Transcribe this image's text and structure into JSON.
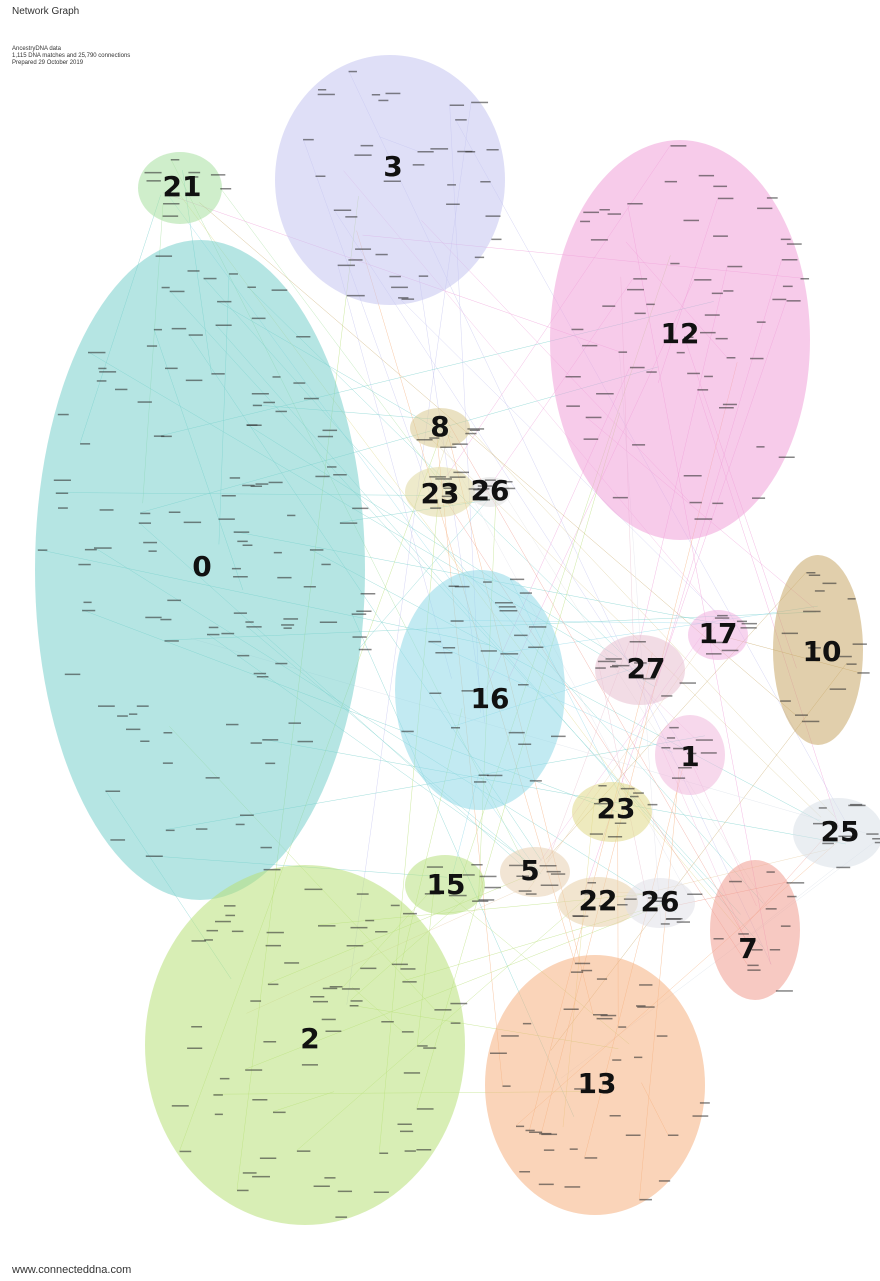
{
  "header": {
    "title": "Network Graph",
    "source": "AncestryDNA data",
    "summary": "1,115 DNA matches and 25,790 connections",
    "prepared": "Prepared 29 October 2019"
  },
  "clusters": [
    {
      "label": "21",
      "color": "#a8e0a0"
    },
    {
      "label": "3",
      "color": "#c4c4f0"
    },
    {
      "label": "12",
      "color": "#f0a0d8"
    },
    {
      "label": "8",
      "color": "#d8c890"
    },
    {
      "label": "23",
      "color": "#e0d8a0"
    },
    {
      "label": "26",
      "color": "#e0e0e0"
    },
    {
      "label": "0",
      "color": "#78d0cc"
    },
    {
      "label": "17",
      "color": "#f0b0e0"
    },
    {
      "label": "10",
      "color": "#c8a868"
    },
    {
      "label": "27",
      "color": "#e8c0d0"
    },
    {
      "label": "16",
      "color": "#90d8e8"
    },
    {
      "label": "1",
      "color": "#f0b8dc"
    },
    {
      "label": "23",
      "color": "#e0d888"
    },
    {
      "label": "25",
      "color": "#d8e0e8"
    },
    {
      "label": "5",
      "color": "#e8d0b0"
    },
    {
      "label": "15",
      "color": "#b8e080"
    },
    {
      "label": "22",
      "color": "#e8d0a8"
    },
    {
      "label": "26",
      "color": "#e0e0e8"
    },
    {
      "label": "7",
      "color": "#f09c90"
    },
    {
      "label": "2",
      "color": "#b8e078"
    },
    {
      "label": "13",
      "color": "#f5b080"
    }
  ],
  "footer": {
    "url": "www.connecteddna.com"
  }
}
